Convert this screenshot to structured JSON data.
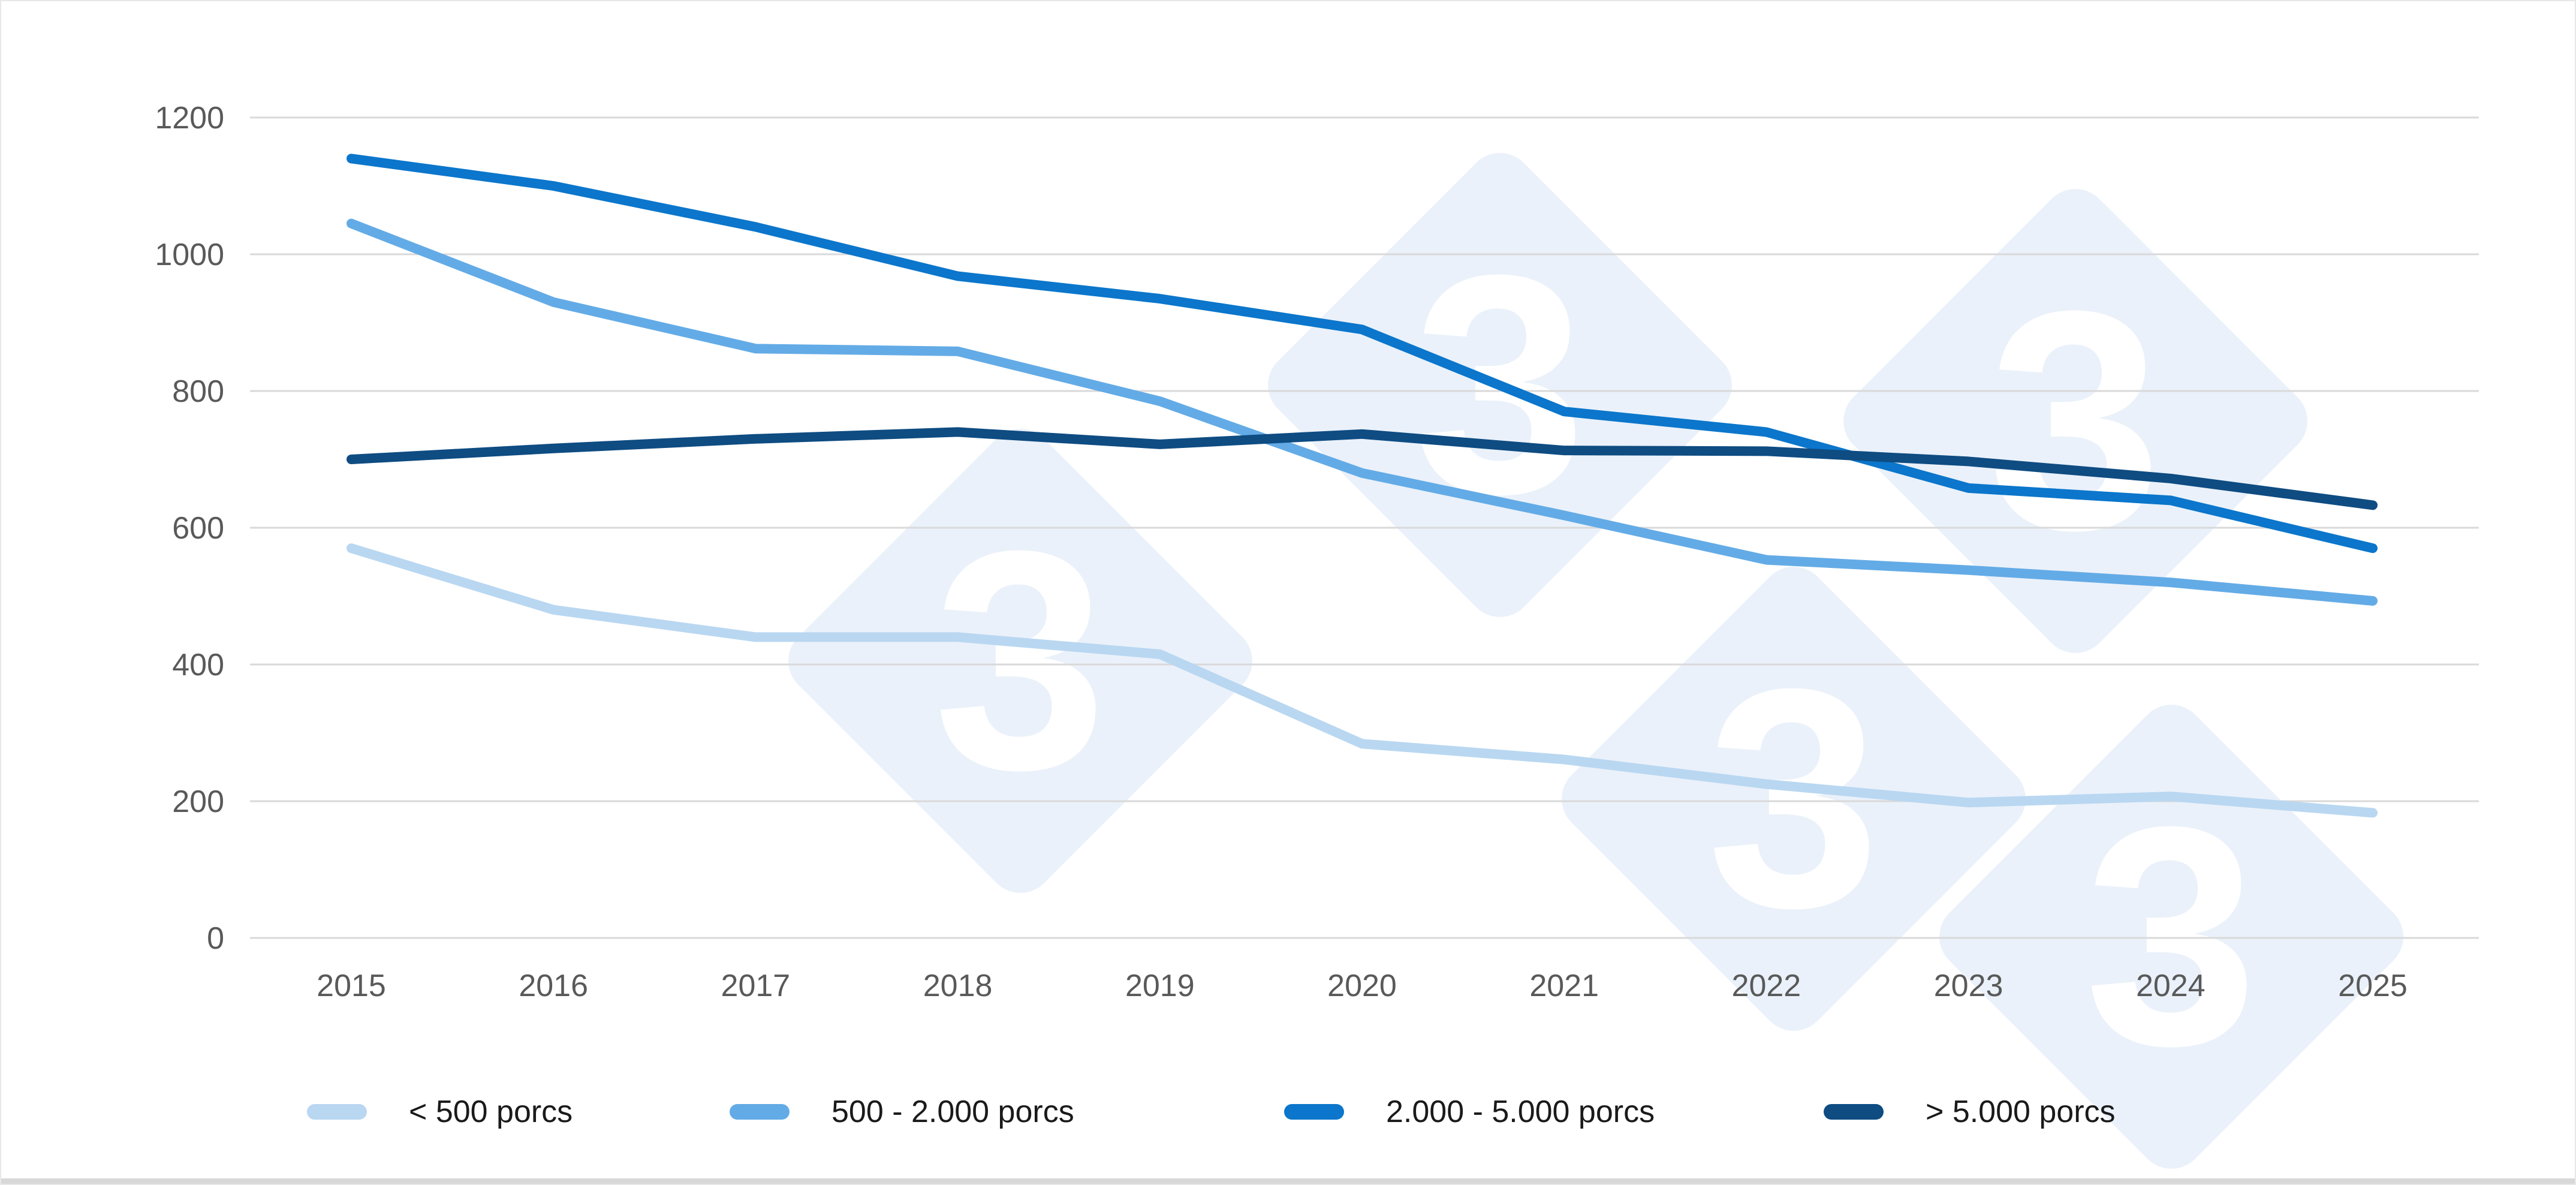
{
  "chart_data": {
    "type": "line",
    "title": "",
    "xlabel": "",
    "ylabel": "",
    "categories": [
      "2015",
      "2016",
      "2017",
      "2018",
      "2019",
      "2020",
      "2021",
      "2022",
      "2023",
      "2024",
      "2025"
    ],
    "ylim": [
      0,
      1200
    ],
    "ytick_step": 200,
    "yticks": [
      0,
      200,
      400,
      600,
      800,
      1000,
      1200
    ],
    "grid": "horizontal",
    "legend_position": "bottom",
    "series": [
      {
        "name": "< 500 porcs",
        "color": "#B9D7F1",
        "values": [
          570,
          480,
          440,
          440,
          415,
          284,
          261,
          225,
          198,
          207,
          183
        ]
      },
      {
        "name": "500 - 2.000 porcs",
        "color": "#63ABE6",
        "values": [
          1045,
          930,
          862,
          858,
          785,
          680,
          618,
          553,
          538,
          520,
          493
        ]
      },
      {
        "name": "2.000 - 5.000 porcs",
        "color": "#0B76CB",
        "values": [
          1140,
          1100,
          1040,
          968,
          935,
          890,
          770,
          740,
          658,
          640,
          570
        ]
      },
      {
        "name": "> 5.000 porcs",
        "color": "#0E4C82",
        "values": [
          700,
          716,
          730,
          740,
          722,
          737,
          713,
          712,
          697,
          672,
          633
        ]
      }
    ]
  },
  "axis": {
    "tick_label_color": "#595959",
    "gridline_color": "#D9D9D9"
  },
  "watermark": {
    "glyph": "3",
    "diamond_color": "#EAF1FA",
    "glyph_color": "#FFFFFF"
  }
}
